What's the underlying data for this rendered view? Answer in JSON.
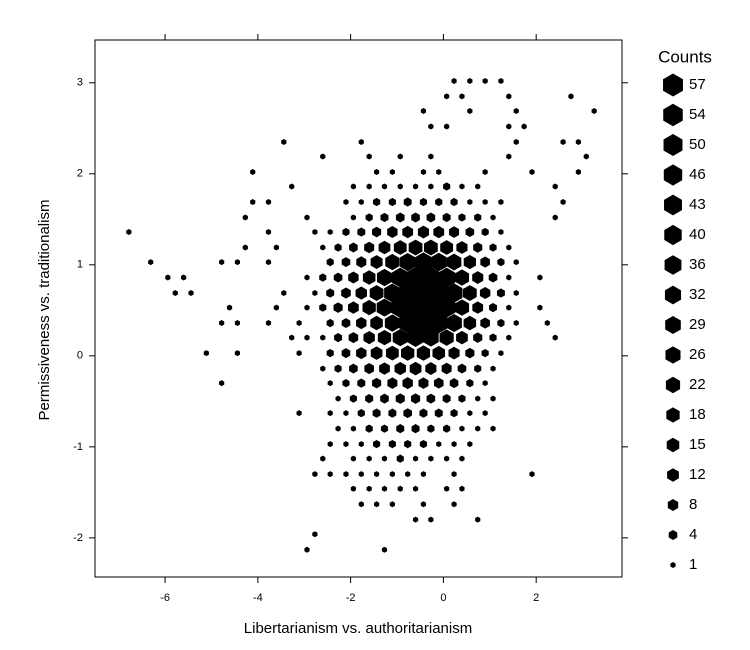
{
  "chart_data": {
    "type": "hexbin",
    "x_label": "Libertarianism vs. authoritarianism",
    "y_label": "Permissiveness vs. traditionalism",
    "xlim": [
      -7.51,
      3.85
    ],
    "ylim": [
      -2.43,
      3.47
    ],
    "xticks": [
      -6,
      -4,
      -2,
      0,
      2
    ],
    "yticks": [
      -2,
      -1,
      0,
      1,
      2,
      3
    ],
    "color": "#000000",
    "legend": {
      "title": "Counts",
      "values": [
        57,
        54,
        50,
        46,
        43,
        40,
        36,
        32,
        29,
        26,
        22,
        18,
        15,
        12,
        8,
        4,
        1
      ]
    },
    "rows": [
      {
        "y": 3.02,
        "x": [
          0.23,
          0.57,
          0.9,
          1.24
        ],
        "counts": [
          1,
          1,
          1,
          1
        ]
      },
      {
        "y": 2.85,
        "x": [
          0.07,
          0.4,
          1.41,
          2.75
        ],
        "counts": [
          1,
          1,
          1,
          1
        ]
      },
      {
        "y": 2.69,
        "x": [
          -0.43,
          0.57,
          1.57,
          3.25
        ],
        "counts": [
          1,
          1,
          1,
          1
        ]
      },
      {
        "y": 2.52,
        "x": [
          -0.27,
          0.07,
          1.41,
          1.74
        ],
        "counts": [
          1,
          1,
          1,
          1
        ]
      },
      {
        "y": 2.35,
        "x": [
          -3.44,
          -1.77,
          1.57,
          2.58,
          2.91
        ],
        "counts": [
          1,
          1,
          1,
          1,
          1
        ]
      },
      {
        "y": 2.19,
        "x": [
          -2.6,
          -1.6,
          -0.93,
          -0.27,
          1.41,
          3.08
        ],
        "counts": [
          1,
          1,
          1,
          1,
          1,
          1
        ]
      },
      {
        "y": 2.02,
        "x": [
          -4.11,
          -1.44,
          -1.1,
          -0.43,
          -0.1,
          0.9,
          1.91,
          2.91
        ],
        "counts": [
          1,
          1,
          1,
          1,
          1,
          1,
          1,
          1
        ]
      },
      {
        "y": 1.86,
        "x": [
          -3.27,
          -1.94,
          -1.6,
          -1.27,
          -0.93,
          -0.6,
          -0.27,
          0.07,
          0.4,
          0.74,
          2.41
        ],
        "counts": [
          1,
          1,
          1,
          1,
          1,
          1,
          1,
          2,
          1,
          1,
          1
        ]
      },
      {
        "y": 1.69,
        "x": [
          -4.11,
          -3.77,
          -2.1,
          -1.77,
          -1.44,
          -1.1,
          -0.77,
          -0.43,
          -0.1,
          0.23,
          0.57,
          0.9,
          1.24,
          2.58
        ],
        "counts": [
          1,
          1,
          1,
          1,
          2,
          2,
          3,
          2,
          2,
          2,
          1,
          1,
          1,
          1
        ]
      },
      {
        "y": 1.52,
        "x": [
          -4.27,
          -2.94,
          -1.94,
          -1.6,
          -1.27,
          -0.93,
          -0.6,
          -0.27,
          0.07,
          0.4,
          0.74,
          1.07,
          2.41
        ],
        "counts": [
          1,
          1,
          1,
          2,
          3,
          4,
          4,
          4,
          3,
          2,
          2,
          1,
          1
        ]
      },
      {
        "y": 1.36,
        "x": [
          -6.78,
          -3.77,
          -2.77,
          -2.44,
          -2.1,
          -1.77,
          -1.44,
          -1.1,
          -0.77,
          -0.43,
          -0.1,
          0.23,
          0.57,
          0.9,
          1.24
        ],
        "counts": [
          1,
          1,
          1,
          1,
          2,
          3,
          5,
          8,
          9,
          10,
          9,
          7,
          4,
          2,
          1
        ]
      },
      {
        "y": 1.19,
        "x": [
          -4.27,
          -3.6,
          -2.6,
          -2.27,
          -1.94,
          -1.6,
          -1.27,
          -0.93,
          -0.6,
          -0.27,
          0.07,
          0.4,
          0.74,
          1.07,
          1.41
        ],
        "counts": [
          1,
          1,
          1,
          2,
          4,
          7,
          12,
          16,
          20,
          20,
          16,
          10,
          5,
          2,
          1
        ]
      },
      {
        "y": 1.03,
        "x": [
          -6.31,
          -4.78,
          -4.44,
          -3.77,
          -2.44,
          -2.1,
          -1.77,
          -1.44,
          -1.1,
          -0.77,
          -0.43,
          -0.1,
          0.23,
          0.57,
          0.9,
          1.24,
          1.57
        ],
        "counts": [
          1,
          1,
          1,
          1,
          2,
          4,
          7,
          13,
          22,
          30,
          36,
          32,
          24,
          14,
          6,
          2,
          1
        ]
      },
      {
        "y": 0.86,
        "x": [
          -5.94,
          -5.6,
          -2.94,
          -2.6,
          -2.27,
          -1.94,
          -1.6,
          -1.27,
          -0.93,
          -0.6,
          -0.27,
          0.07,
          0.4,
          0.74,
          1.07,
          1.41,
          2.08
        ],
        "counts": [
          1,
          1,
          1,
          2,
          4,
          8,
          15,
          26,
          38,
          46,
          46,
          38,
          22,
          10,
          4,
          1,
          1
        ]
      },
      {
        "y": 0.69,
        "x": [
          -5.78,
          -5.44,
          -3.44,
          -2.77,
          -2.44,
          -2.1,
          -1.77,
          -1.44,
          -1.1,
          -0.77,
          -0.43,
          -0.1,
          0.23,
          0.57,
          0.9,
          1.24,
          1.57
        ],
        "counts": [
          1,
          1,
          1,
          1,
          3,
          6,
          11,
          20,
          34,
          46,
          57,
          50,
          36,
          20,
          8,
          3,
          1
        ]
      },
      {
        "y": 0.53,
        "x": [
          -4.61,
          -3.6,
          -2.94,
          -2.6,
          -2.27,
          -1.94,
          -1.6,
          -1.27,
          -0.93,
          -0.6,
          -0.27,
          0.07,
          0.4,
          0.74,
          1.07,
          1.41,
          2.08
        ],
        "counts": [
          1,
          1,
          1,
          2,
          5,
          9,
          18,
          29,
          43,
          54,
          50,
          40,
          22,
          9,
          3,
          1,
          1
        ]
      },
      {
        "y": 0.36,
        "x": [
          -4.78,
          -4.44,
          -3.77,
          -3.11,
          -2.44,
          -2.1,
          -1.77,
          -1.44,
          -1.1,
          -0.77,
          -0.43,
          -0.1,
          0.23,
          0.57,
          0.9,
          1.24,
          1.57,
          2.24
        ],
        "counts": [
          1,
          1,
          1,
          1,
          2,
          4,
          8,
          15,
          26,
          40,
          50,
          43,
          29,
          15,
          6,
          2,
          1,
          1
        ]
      },
      {
        "y": 0.2,
        "x": [
          -3.27,
          -2.94,
          -2.6,
          -2.27,
          -1.94,
          -1.6,
          -1.27,
          -0.93,
          -0.6,
          -0.27,
          0.07,
          0.4,
          0.74,
          1.07,
          1.41,
          2.41
        ],
        "counts": [
          1,
          1,
          1,
          3,
          6,
          11,
          18,
          26,
          32,
          29,
          22,
          12,
          5,
          2,
          1,
          1
        ]
      },
      {
        "y": 0.03,
        "x": [
          -5.11,
          -4.44,
          -3.11,
          -2.44,
          -2.1,
          -1.77,
          -1.44,
          -1.1,
          -0.77,
          -0.43,
          -0.1,
          0.23,
          0.57,
          0.9,
          1.24
        ],
        "counts": [
          1,
          1,
          1,
          2,
          4,
          8,
          12,
          16,
          18,
          18,
          15,
          10,
          5,
          2,
          1
        ]
      },
      {
        "y": -0.14,
        "x": [
          -2.6,
          -2.27,
          -1.94,
          -1.6,
          -1.27,
          -0.93,
          -0.6,
          -0.27,
          0.07,
          0.4,
          0.74,
          1.07
        ],
        "counts": [
          1,
          2,
          4,
          6,
          9,
          11,
          12,
          10,
          7,
          4,
          2,
          1
        ]
      },
      {
        "y": -0.3,
        "x": [
          -4.78,
          -2.44,
          -2.1,
          -1.77,
          -1.44,
          -1.1,
          -0.77,
          -0.43,
          -0.1,
          0.23,
          0.57,
          0.9
        ],
        "counts": [
          1,
          1,
          2,
          3,
          5,
          7,
          8,
          7,
          6,
          4,
          2,
          1
        ]
      },
      {
        "y": -0.47,
        "x": [
          -2.27,
          -1.94,
          -1.6,
          -1.27,
          -0.93,
          -0.6,
          -0.27,
          0.07,
          0.4,
          0.74,
          1.07
        ],
        "counts": [
          1,
          2,
          3,
          4,
          5,
          5,
          4,
          3,
          2,
          1,
          1
        ]
      },
      {
        "y": -0.63,
        "x": [
          -3.11,
          -2.44,
          -2.1,
          -1.77,
          -1.44,
          -1.1,
          -0.77,
          -0.43,
          -0.1,
          0.23,
          0.57,
          0.9
        ],
        "counts": [
          1,
          1,
          1,
          2,
          3,
          3,
          4,
          3,
          3,
          2,
          1,
          1
        ]
      },
      {
        "y": -0.8,
        "x": [
          -2.27,
          -1.94,
          -1.6,
          -1.27,
          -0.93,
          -0.6,
          -0.27,
          0.07,
          0.4,
          0.74,
          1.07
        ],
        "counts": [
          1,
          1,
          2,
          2,
          3,
          3,
          2,
          2,
          1,
          1,
          1
        ]
      },
      {
        "y": -0.97,
        "x": [
          -2.44,
          -2.1,
          -1.77,
          -1.44,
          -1.1,
          -0.77,
          -0.43,
          -0.1,
          0.23,
          0.57
        ],
        "counts": [
          1,
          1,
          1,
          2,
          2,
          2,
          2,
          1,
          1,
          1
        ]
      },
      {
        "y": -1.13,
        "x": [
          -2.6,
          -1.94,
          -1.6,
          -1.27,
          -0.93,
          -0.6,
          -0.27,
          0.07,
          0.4
        ],
        "counts": [
          1,
          1,
          1,
          1,
          2,
          1,
          1,
          1,
          1
        ]
      },
      {
        "y": -1.3,
        "x": [
          -2.77,
          -2.44,
          -2.1,
          -1.77,
          -1.44,
          -1.1,
          -0.77,
          -0.43,
          0.23,
          1.91
        ],
        "counts": [
          1,
          1,
          1,
          1,
          1,
          1,
          1,
          1,
          1,
          1
        ]
      },
      {
        "y": -1.46,
        "x": [
          -1.94,
          -1.6,
          -1.27,
          -0.93,
          -0.6,
          0.07,
          0.4
        ],
        "counts": [
          1,
          1,
          1,
          1,
          1,
          1,
          1
        ]
      },
      {
        "y": -1.63,
        "x": [
          -1.77,
          -1.44,
          -1.1,
          -0.43,
          0.23
        ],
        "counts": [
          1,
          1,
          1,
          1,
          1
        ]
      },
      {
        "y": -1.8,
        "x": [
          -0.6,
          -0.27,
          0.74
        ],
        "counts": [
          1,
          1,
          1
        ]
      },
      {
        "y": -1.96,
        "x": [
          -2.77
        ],
        "counts": [
          1
        ]
      },
      {
        "y": -2.13,
        "x": [
          -2.94,
          -1.27
        ],
        "counts": [
          1,
          1
        ]
      }
    ]
  }
}
